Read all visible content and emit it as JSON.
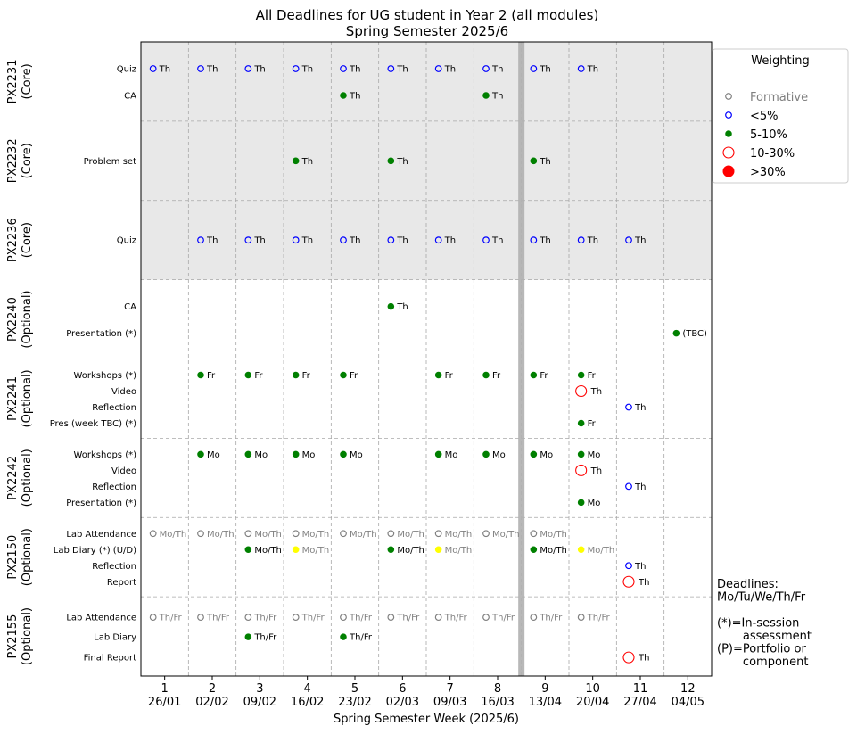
{
  "chart_data": {
    "type": "scatter",
    "title": "All Deadlines for UG student in Year 2 (all modules)",
    "subtitle": "Spring Semester 2025/6",
    "xlabel": "Spring Semester Week (2025/6)",
    "x_ticks": [
      {
        "week": "1",
        "date": "26/01"
      },
      {
        "week": "2",
        "date": "02/02"
      },
      {
        "week": "3",
        "date": "09/02"
      },
      {
        "week": "4",
        "date": "16/02"
      },
      {
        "week": "5",
        "date": "23/02"
      },
      {
        "week": "6",
        "date": "02/03"
      },
      {
        "week": "7",
        "date": "09/03"
      },
      {
        "week": "8",
        "date": "16/03"
      },
      {
        "week": "9",
        "date": "13/04"
      },
      {
        "week": "10",
        "date": "20/04"
      },
      {
        "week": "11",
        "date": "27/04"
      },
      {
        "week": "12",
        "date": "04/05"
      }
    ],
    "break_after_week": 8,
    "legend": {
      "title": "Weighting",
      "placement": "upper-right-outside",
      "entries": [
        {
          "label": "Formative",
          "style": "formative"
        },
        {
          "label": "<5%",
          "style": "lt5"
        },
        {
          "label": "5-10%",
          "style": "w5_10"
        },
        {
          "label": "10-30%",
          "style": "w10_30"
        },
        {
          "label": ">30%",
          "style": "gt30"
        }
      ]
    },
    "styles": {
      "formative": {
        "fill": "none",
        "stroke": "#808080",
        "text": "#808080"
      },
      "lt5": {
        "fill": "none",
        "stroke": "#0000ff",
        "text": "#000000"
      },
      "w5_10": {
        "fill": "#008000",
        "stroke": "#008000",
        "text": "#000000"
      },
      "w10_30": {
        "fill": "none",
        "stroke": "#ff0000",
        "text": "#000000"
      },
      "gt30": {
        "fill": "#ff0000",
        "stroke": "#ff0000",
        "text": "#000000"
      },
      "yellow": {
        "fill": "#ffff00",
        "stroke": "#ffff00",
        "text": "#808080"
      }
    },
    "modules": [
      {
        "name": "PX2231",
        "type": "(Core)",
        "core": true,
        "rows": [
          {
            "label": "Quiz",
            "points": [
              {
                "week": 1,
                "style": "lt5",
                "note": "Th"
              },
              {
                "week": 2,
                "style": "lt5",
                "note": "Th"
              },
              {
                "week": 3,
                "style": "lt5",
                "note": "Th"
              },
              {
                "week": 4,
                "style": "lt5",
                "note": "Th"
              },
              {
                "week": 5,
                "style": "lt5",
                "note": "Th"
              },
              {
                "week": 6,
                "style": "lt5",
                "note": "Th"
              },
              {
                "week": 7,
                "style": "lt5",
                "note": "Th"
              },
              {
                "week": 8,
                "style": "lt5",
                "note": "Th"
              },
              {
                "week": 9,
                "style": "lt5",
                "note": "Th"
              },
              {
                "week": 10,
                "style": "lt5",
                "note": "Th"
              }
            ]
          },
          {
            "label": "CA",
            "points": [
              {
                "week": 5,
                "style": "w5_10",
                "note": "Th"
              },
              {
                "week": 8,
                "style": "w5_10",
                "note": "Th"
              }
            ]
          }
        ]
      },
      {
        "name": "PX2232",
        "type": "(Core)",
        "core": true,
        "rows": [
          {
            "label": "Problem set",
            "points": [
              {
                "week": 4,
                "style": "w5_10",
                "note": "Th"
              },
              {
                "week": 6,
                "style": "w5_10",
                "note": "Th"
              },
              {
                "week": 9,
                "style": "w5_10",
                "note": "Th"
              }
            ]
          }
        ]
      },
      {
        "name": "PX2236",
        "type": "(Core)",
        "core": true,
        "rows": [
          {
            "label": "Quiz",
            "points": [
              {
                "week": 2,
                "style": "lt5",
                "note": "Th"
              },
              {
                "week": 3,
                "style": "lt5",
                "note": "Th"
              },
              {
                "week": 4,
                "style": "lt5",
                "note": "Th"
              },
              {
                "week": 5,
                "style": "lt5",
                "note": "Th"
              },
              {
                "week": 6,
                "style": "lt5",
                "note": "Th"
              },
              {
                "week": 7,
                "style": "lt5",
                "note": "Th"
              },
              {
                "week": 8,
                "style": "lt5",
                "note": "Th"
              },
              {
                "week": 9,
                "style": "lt5",
                "note": "Th"
              },
              {
                "week": 10,
                "style": "lt5",
                "note": "Th"
              },
              {
                "week": 11,
                "style": "lt5",
                "note": "Th"
              }
            ]
          }
        ]
      },
      {
        "name": "PX2240",
        "type": "(Optional)",
        "core": false,
        "rows": [
          {
            "label": "CA",
            "points": [
              {
                "week": 6,
                "style": "w5_10",
                "note": "Th"
              }
            ]
          },
          {
            "label": "Presentation (*)",
            "points": [
              {
                "week": 12,
                "style": "w5_10",
                "note": "(TBC)"
              }
            ]
          }
        ]
      },
      {
        "name": "PX2241",
        "type": "(Optional)",
        "core": false,
        "rows": [
          {
            "label": "Workshops (*)",
            "points": [
              {
                "week": 2,
                "style": "w5_10",
                "note": "Fr"
              },
              {
                "week": 3,
                "style": "w5_10",
                "note": "Fr"
              },
              {
                "week": 4,
                "style": "w5_10",
                "note": "Fr"
              },
              {
                "week": 5,
                "style": "w5_10",
                "note": "Fr"
              },
              {
                "week": 7,
                "style": "w5_10",
                "note": "Fr"
              },
              {
                "week": 8,
                "style": "w5_10",
                "note": "Fr"
              },
              {
                "week": 9,
                "style": "w5_10",
                "note": "Fr"
              },
              {
                "week": 10,
                "style": "w5_10",
                "note": "Fr"
              }
            ]
          },
          {
            "label": "Video",
            "points": [
              {
                "week": 10,
                "style": "w10_30",
                "note": "Th"
              }
            ]
          },
          {
            "label": "Reflection",
            "points": [
              {
                "week": 11,
                "style": "lt5",
                "note": "Th"
              }
            ]
          },
          {
            "label": "Pres (week TBC) (*)",
            "points": [
              {
                "week": 10,
                "style": "w5_10",
                "note": "Fr"
              }
            ]
          }
        ]
      },
      {
        "name": "PX2242",
        "type": "(Optional)",
        "core": false,
        "rows": [
          {
            "label": "Workshops (*)",
            "points": [
              {
                "week": 2,
                "style": "w5_10",
                "note": "Mo"
              },
              {
                "week": 3,
                "style": "w5_10",
                "note": "Mo"
              },
              {
                "week": 4,
                "style": "w5_10",
                "note": "Mo"
              },
              {
                "week": 5,
                "style": "w5_10",
                "note": "Mo"
              },
              {
                "week": 7,
                "style": "w5_10",
                "note": "Mo"
              },
              {
                "week": 8,
                "style": "w5_10",
                "note": "Mo"
              },
              {
                "week": 9,
                "style": "w5_10",
                "note": "Mo"
              },
              {
                "week": 10,
                "style": "w5_10",
                "note": "Mo"
              }
            ]
          },
          {
            "label": "Video",
            "points": [
              {
                "week": 10,
                "style": "w10_30",
                "note": "Th"
              }
            ]
          },
          {
            "label": "Reflection",
            "points": [
              {
                "week": 11,
                "style": "lt5",
                "note": "Th"
              }
            ]
          },
          {
            "label": "Presentation (*)",
            "points": [
              {
                "week": 10,
                "style": "w5_10",
                "note": "Mo"
              }
            ]
          }
        ]
      },
      {
        "name": "PX2150",
        "type": "(Optional)",
        "core": false,
        "rows": [
          {
            "label": "Lab Attendance",
            "points": [
              {
                "week": 1,
                "style": "formative",
                "note": "Mo/Th"
              },
              {
                "week": 2,
                "style": "formative",
                "note": "Mo/Th"
              },
              {
                "week": 3,
                "style": "formative",
                "note": "Mo/Th"
              },
              {
                "week": 4,
                "style": "formative",
                "note": "Mo/Th"
              },
              {
                "week": 5,
                "style": "formative",
                "note": "Mo/Th"
              },
              {
                "week": 6,
                "style": "formative",
                "note": "Mo/Th"
              },
              {
                "week": 7,
                "style": "formative",
                "note": "Mo/Th"
              },
              {
                "week": 8,
                "style": "formative",
                "note": "Mo/Th"
              },
              {
                "week": 9,
                "style": "formative",
                "note": "Mo/Th"
              }
            ]
          },
          {
            "label": "Lab Diary (*) (U/D)",
            "points": [
              {
                "week": 3,
                "style": "w5_10",
                "note": "Mo/Th"
              },
              {
                "week": 4,
                "style": "yellow",
                "note": "Mo/Th"
              },
              {
                "week": 6,
                "style": "w5_10",
                "note": "Mo/Th"
              },
              {
                "week": 7,
                "style": "yellow",
                "note": "Mo/Th"
              },
              {
                "week": 9,
                "style": "w5_10",
                "note": "Mo/Th"
              },
              {
                "week": 10,
                "style": "yellow",
                "note": "Mo/Th"
              }
            ]
          },
          {
            "label": "Reflection",
            "points": [
              {
                "week": 11,
                "style": "lt5",
                "note": "Th"
              }
            ]
          },
          {
            "label": "Report",
            "points": [
              {
                "week": 11,
                "style": "w10_30",
                "note": "Th"
              }
            ]
          }
        ]
      },
      {
        "name": "PX2155",
        "type": "(Optional)",
        "core": false,
        "rows": [
          {
            "label": "Lab Attendance",
            "points": [
              {
                "week": 1,
                "style": "formative",
                "note": "Th/Fr"
              },
              {
                "week": 2,
                "style": "formative",
                "note": "Th/Fr"
              },
              {
                "week": 3,
                "style": "formative",
                "note": "Th/Fr"
              },
              {
                "week": 4,
                "style": "formative",
                "note": "Th/Fr"
              },
              {
                "week": 5,
                "style": "formative",
                "note": "Th/Fr"
              },
              {
                "week": 6,
                "style": "formative",
                "note": "Th/Fr"
              },
              {
                "week": 7,
                "style": "formative",
                "note": "Th/Fr"
              },
              {
                "week": 8,
                "style": "formative",
                "note": "Th/Fr"
              },
              {
                "week": 9,
                "style": "formative",
                "note": "Th/Fr"
              },
              {
                "week": 10,
                "style": "formative",
                "note": "Th/Fr"
              }
            ]
          },
          {
            "label": "Lab Diary",
            "points": [
              {
                "week": 3,
                "style": "w5_10",
                "note": "Th/Fr"
              },
              {
                "week": 5,
                "style": "w5_10",
                "note": "Th/Fr"
              }
            ]
          },
          {
            "label": "Final Report",
            "points": [
              {
                "week": 11,
                "style": "w10_30",
                "note": "Th"
              }
            ]
          }
        ]
      }
    ],
    "notes": [
      "Deadlines:",
      "Mo/Tu/We/Th/Fr",
      "",
      "(*)=In-session",
      "       assessment",
      "(P)=Portfolio or",
      "       component"
    ]
  }
}
